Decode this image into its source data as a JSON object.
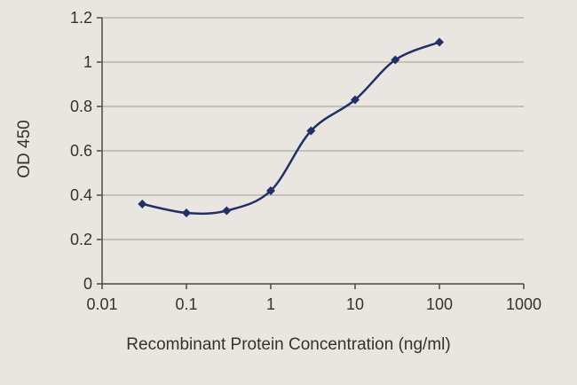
{
  "style": {
    "background": "#e9e6e1",
    "text_color": "#35312b",
    "grid_color": "#9e9b94",
    "axis_color": "#4c4840",
    "series_color": "#213167"
  },
  "chart_data": {
    "type": "line",
    "title": "",
    "xlabel": "Recombinant Protein Concentration (ng/ml)",
    "ylabel": "OD 450",
    "x_scale": "log",
    "xlim": [
      0.01,
      1000
    ],
    "ylim": [
      0,
      1.2
    ],
    "x_ticks": [
      0.01,
      0.1,
      1,
      10,
      100,
      1000
    ],
    "x_tick_labels": [
      "0.01",
      "0.1",
      "1",
      "10",
      "100",
      "1000"
    ],
    "y_ticks": [
      0,
      0.2,
      0.4,
      0.6,
      0.8,
      1,
      1.2
    ],
    "y_tick_labels": [
      "0",
      "0.2",
      "0.4",
      "0.6",
      "0.8",
      "1",
      "1.2"
    ],
    "grid": "horizontal",
    "legend": "none",
    "series": [
      {
        "name": "OD 450",
        "marker": "diamond",
        "color": "#213167",
        "x": [
          0.03,
          0.1,
          0.3,
          1,
          3,
          10,
          30,
          100
        ],
        "y": [
          0.36,
          0.32,
          0.33,
          0.42,
          0.69,
          0.83,
          1.01,
          1.09
        ]
      }
    ]
  }
}
